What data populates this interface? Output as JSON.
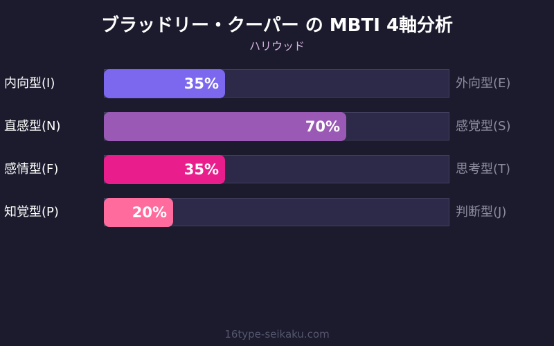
{
  "header": {
    "title": "ブラッドリー・クーパー の MBTI 4軸分析",
    "subtitle": "ハリウッド"
  },
  "footer": {
    "text": "16type-seikaku.com"
  },
  "rows": [
    {
      "left": "内向型(I)",
      "right": "外向型(E)",
      "value": 35,
      "label": "35%",
      "color": "#7b68ee"
    },
    {
      "left": "直感型(N)",
      "right": "感覚型(S)",
      "value": 70,
      "label": "70%",
      "color": "#9b59b6"
    },
    {
      "left": "感情型(F)",
      "right": "思考型(T)",
      "value": 35,
      "label": "35%",
      "color": "#e91e8c"
    },
    {
      "left": "知覚型(P)",
      "right": "判断型(J)",
      "value": 20,
      "label": "20%",
      "color": "#ff6b9d"
    }
  ],
  "chart_data": {
    "type": "bar",
    "orientation": "horizontal",
    "title": "ブラッドリー・クーパー の MBTI 4軸分析",
    "subtitle": "ハリウッド",
    "categories": [
      "内向型(I) / 外向型(E)",
      "直感型(N) / 感覚型(S)",
      "感情型(F) / 思考型(T)",
      "知覚型(P) / 判断型(J)"
    ],
    "left_labels": [
      "内向型(I)",
      "直感型(N)",
      "感情型(F)",
      "知覚型(P)"
    ],
    "right_labels": [
      "外向型(E)",
      "感覚型(S)",
      "思考型(T)",
      "判断型(J)"
    ],
    "values": [
      35,
      70,
      35,
      20
    ],
    "value_labels": [
      "35%",
      "70%",
      "35%",
      "20%"
    ],
    "colors": [
      "#7b68ee",
      "#9b59b6",
      "#e91e8c",
      "#ff6b9d"
    ],
    "xlim": [
      0,
      100
    ],
    "grid": false,
    "legend": "none",
    "footer": "16type-seikaku.com"
  }
}
